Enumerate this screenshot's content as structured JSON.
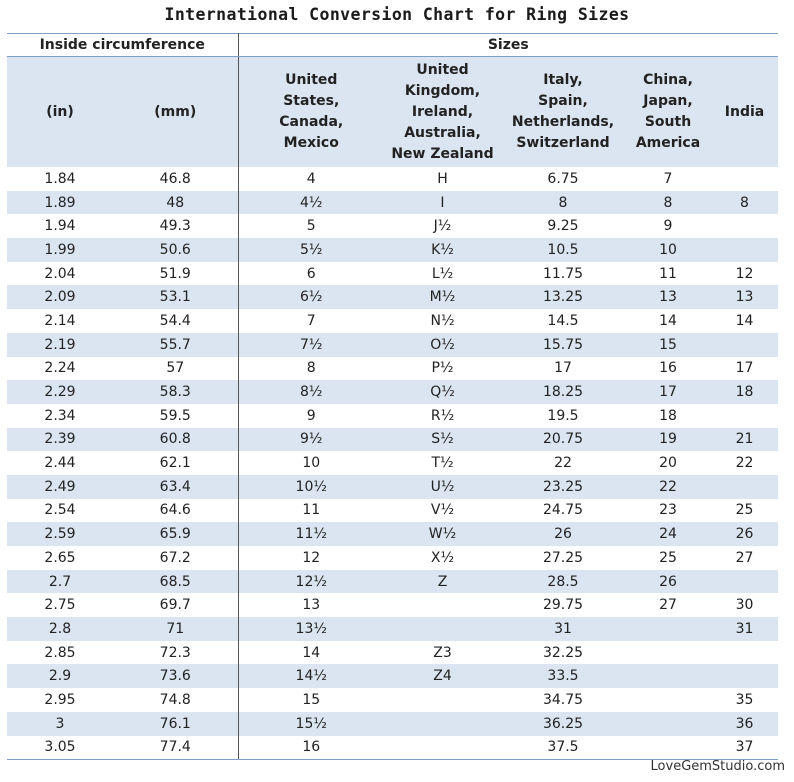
{
  "title": "International Conversion Chart for Ring Sizes",
  "group_headers": {
    "circumference": "Inside circumference",
    "sizes": "Sizes"
  },
  "columns": [
    "(in)",
    "(mm)",
    "United\nStates,\nCanada,\nMexico",
    "United\nKingdom,\nIreland,\nAustralia,\nNew Zealand",
    "Italy,\nSpain,\nNetherlands,\nSwitzerland",
    "China,\nJapan,\nSouth\nAmerica",
    "India"
  ],
  "rows": [
    [
      "1.84",
      "46.8",
      "4",
      "H",
      "6.75",
      "7",
      ""
    ],
    [
      "1.89",
      "48",
      "4½",
      "I",
      "8",
      "8",
      "8"
    ],
    [
      "1.94",
      "49.3",
      "5",
      "J½",
      "9.25",
      "9",
      ""
    ],
    [
      "1.99",
      "50.6",
      "5½",
      "K½",
      "10.5",
      "10",
      ""
    ],
    [
      "2.04",
      "51.9",
      "6",
      "L½",
      "11.75",
      "11",
      "12"
    ],
    [
      "2.09",
      "53.1",
      "6½",
      "M½",
      "13.25",
      "13",
      "13"
    ],
    [
      "2.14",
      "54.4",
      "7",
      "N½",
      "14.5",
      "14",
      "14"
    ],
    [
      "2.19",
      "55.7",
      "7½",
      "O½",
      "15.75",
      "15",
      ""
    ],
    [
      "2.24",
      "57",
      "8",
      "P½",
      "17",
      "16",
      "17"
    ],
    [
      "2.29",
      "58.3",
      "8½",
      "Q½",
      "18.25",
      "17",
      "18"
    ],
    [
      "2.34",
      "59.5",
      "9",
      "R½",
      "19.5",
      "18",
      ""
    ],
    [
      "2.39",
      "60.8",
      "9½",
      "S½",
      "20.75",
      "19",
      "21"
    ],
    [
      "2.44",
      "62.1",
      "10",
      "T½",
      "22",
      "20",
      "22"
    ],
    [
      "2.49",
      "63.4",
      "10½",
      "U½",
      "23.25",
      "22",
      ""
    ],
    [
      "2.54",
      "64.6",
      "11",
      "V½",
      "24.75",
      "23",
      "25"
    ],
    [
      "2.59",
      "65.9",
      "11½",
      "W½",
      "26",
      "24",
      "26"
    ],
    [
      "2.65",
      "67.2",
      "12",
      "X½",
      "27.25",
      "25",
      "27"
    ],
    [
      "2.7",
      "68.5",
      "12½",
      "Z",
      "28.5",
      "26",
      ""
    ],
    [
      "2.75",
      "69.7",
      "13",
      "",
      "29.75",
      "27",
      "30"
    ],
    [
      "2.8",
      "71",
      "13½",
      "",
      "31",
      "",
      "31"
    ],
    [
      "2.85",
      "72.3",
      "14",
      "Z3",
      "32.25",
      "",
      ""
    ],
    [
      "2.9",
      "73.6",
      "14½",
      "Z4",
      "33.5",
      "",
      ""
    ],
    [
      "2.95",
      "74.8",
      "15",
      "",
      "34.75",
      "",
      "35"
    ],
    [
      "3",
      "76.1",
      "15½",
      "",
      "36.25",
      "",
      "36"
    ],
    [
      "3.05",
      "77.4",
      "16",
      "",
      "37.5",
      "",
      "37"
    ]
  ],
  "credit": "LoveGemStudio.com"
}
